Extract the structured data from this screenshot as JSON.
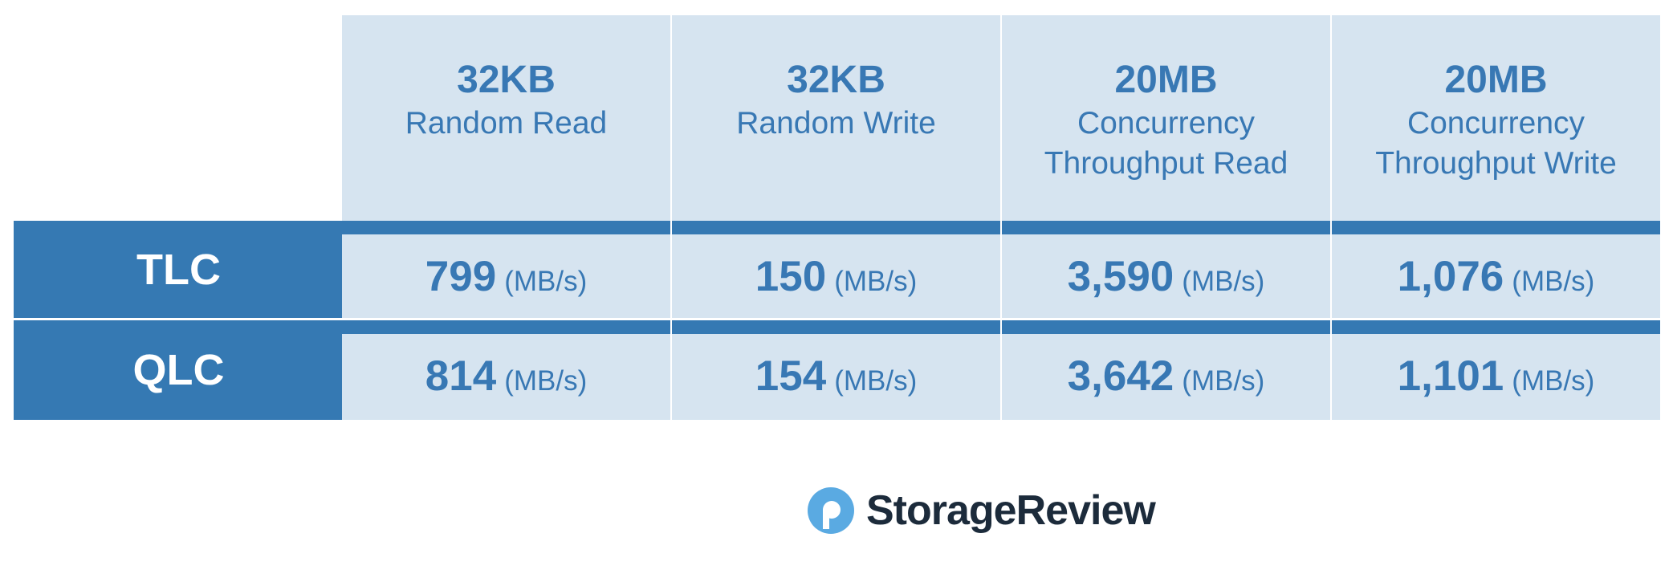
{
  "table": {
    "columns": [
      {
        "size": "32KB",
        "label": "Random Read"
      },
      {
        "size": "32KB",
        "label": "Random Write"
      },
      {
        "size": "20MB",
        "label": "Concurrency Throughput Read"
      },
      {
        "size": "20MB",
        "label": "Concurrency Throughput Write"
      }
    ],
    "rows": [
      {
        "name": "TLC",
        "cells": [
          {
            "value": "799",
            "unit": "(MB/s)"
          },
          {
            "value": "150",
            "unit": "(MB/s)"
          },
          {
            "value": "3,590",
            "unit": "(MB/s)"
          },
          {
            "value": "1,076",
            "unit": "(MB/s)"
          }
        ]
      },
      {
        "name": "QLC",
        "cells": [
          {
            "value": "814",
            "unit": "(MB/s)"
          },
          {
            "value": "154",
            "unit": "(MB/s)"
          },
          {
            "value": "3,642",
            "unit": "(MB/s)"
          },
          {
            "value": "1,101",
            "unit": "(MB/s)"
          }
        ]
      }
    ]
  },
  "footer": {
    "logo": "StorageReview"
  }
}
